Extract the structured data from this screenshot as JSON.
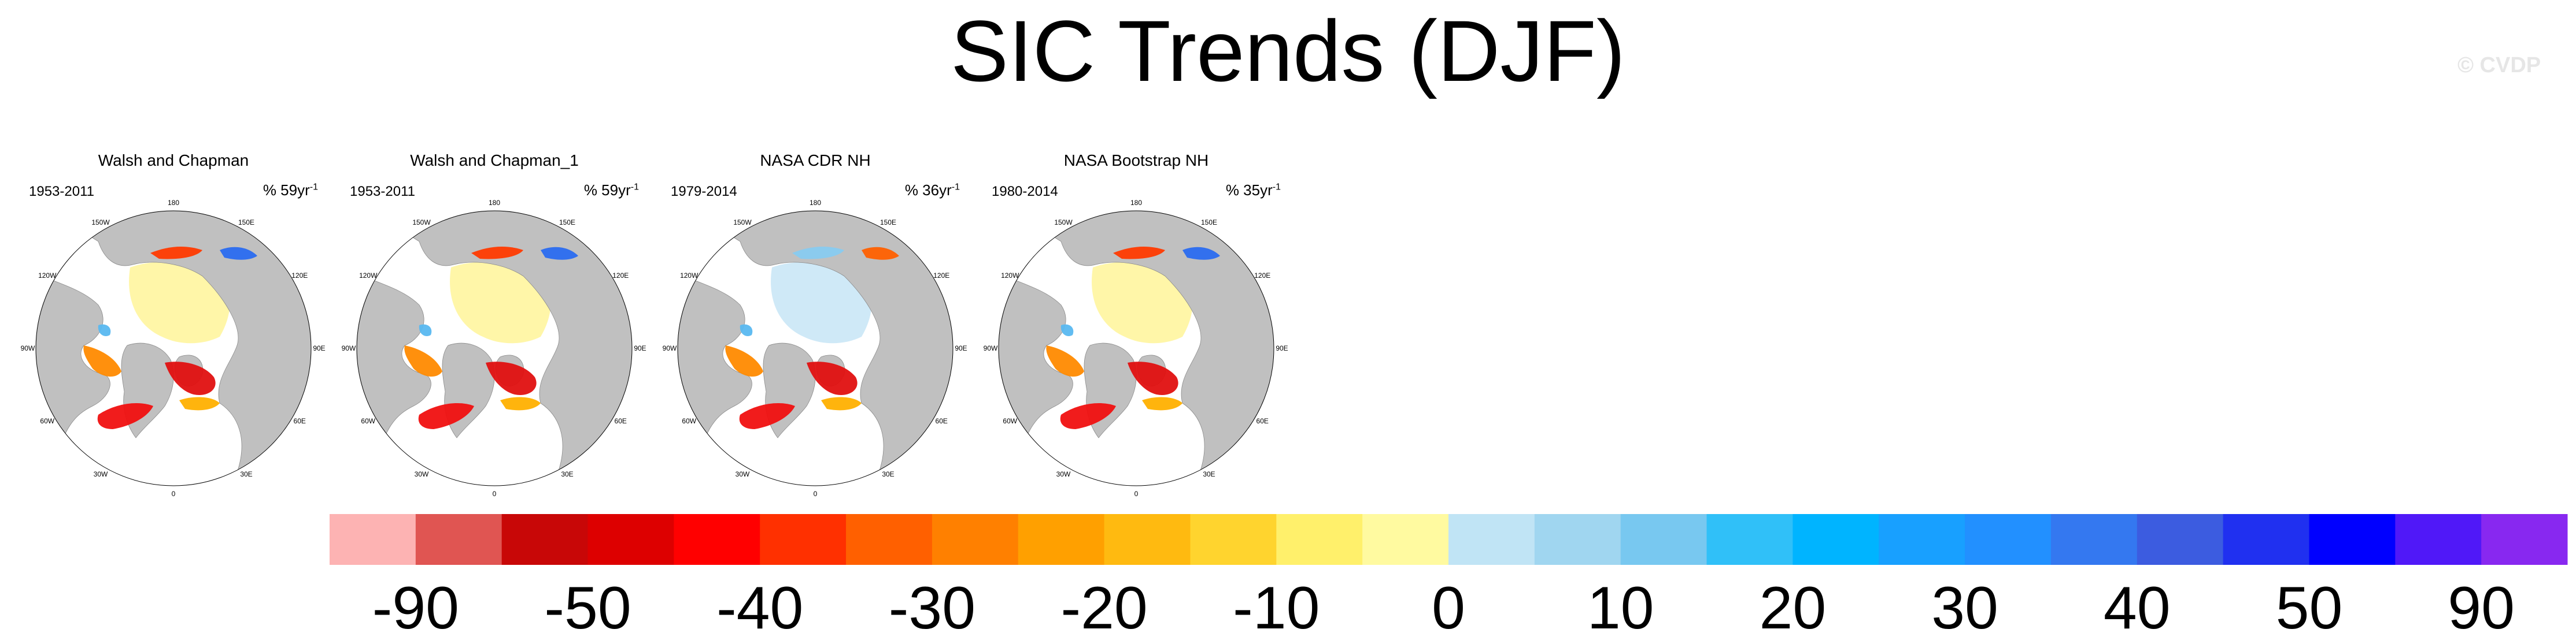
{
  "title": "SIC Trends (DJF)",
  "watermark": "© CVDP",
  "panels": [
    {
      "title": "Walsh and Chapman",
      "period": "1953-2011",
      "units_prefix": "% 59yr",
      "units_exp": "-1"
    },
    {
      "title": "Walsh and Chapman_1",
      "period": "1953-2011",
      "units_prefix": "% 59yr",
      "units_exp": "-1"
    },
    {
      "title": "NASA CDR NH",
      "period": "1979-2014",
      "units_prefix": "% 36yr",
      "units_exp": "-1"
    },
    {
      "title": "NASA Bootstrap NH",
      "period": "1980-2014",
      "units_prefix": "% 35yr",
      "units_exp": "-1"
    }
  ],
  "longitude_labels": [
    "180",
    "150W",
    "150E",
    "120W",
    "120E",
    "90W",
    "90E",
    "60W",
    "60E",
    "30W",
    "30E",
    "0"
  ],
  "chart_data": {
    "type": "heatmap",
    "title": "SIC Trends (DJF)",
    "projection": "north polar stereographic",
    "variable": "Sea ice concentration trend (%)",
    "season": "DJF",
    "colorbar": {
      "tick_labels": [
        "-90",
        "-50",
        "-40",
        "-30",
        "-20",
        "-10",
        "0",
        "10",
        "20",
        "30",
        "40",
        "50",
        "90"
      ],
      "colors": [
        "#fdb3b3",
        "#e05552",
        "#c80707",
        "#dd0000",
        "#ff0000",
        "#ff3000",
        "#ff6000",
        "#ff8000",
        "#ffa000",
        "#ffba10",
        "#ffd42e",
        "#fff06b",
        "#fffaa0",
        "#c0e4f5",
        "#a0d6f0",
        "#78c8f0",
        "#30c0f8",
        "#00b4ff",
        "#18a0ff",
        "#2290ff",
        "#3478f0",
        "#3c5ce0",
        "#2030f0",
        "#0000ff",
        "#5018f8",
        "#8828f0"
      ],
      "orientation": "horizontal",
      "position": "bottom"
    },
    "panels": [
      {
        "name": "Walsh and Chapman",
        "period": "1953-2011",
        "years": 59
      },
      {
        "name": "Walsh and Chapman_1",
        "period": "1953-2011",
        "years": 59
      },
      {
        "name": "NASA CDR NH",
        "period": "1979-2014",
        "years": 36
      },
      {
        "name": "NASA Bootstrap NH",
        "period": "1980-2014",
        "years": 35
      }
    ]
  }
}
